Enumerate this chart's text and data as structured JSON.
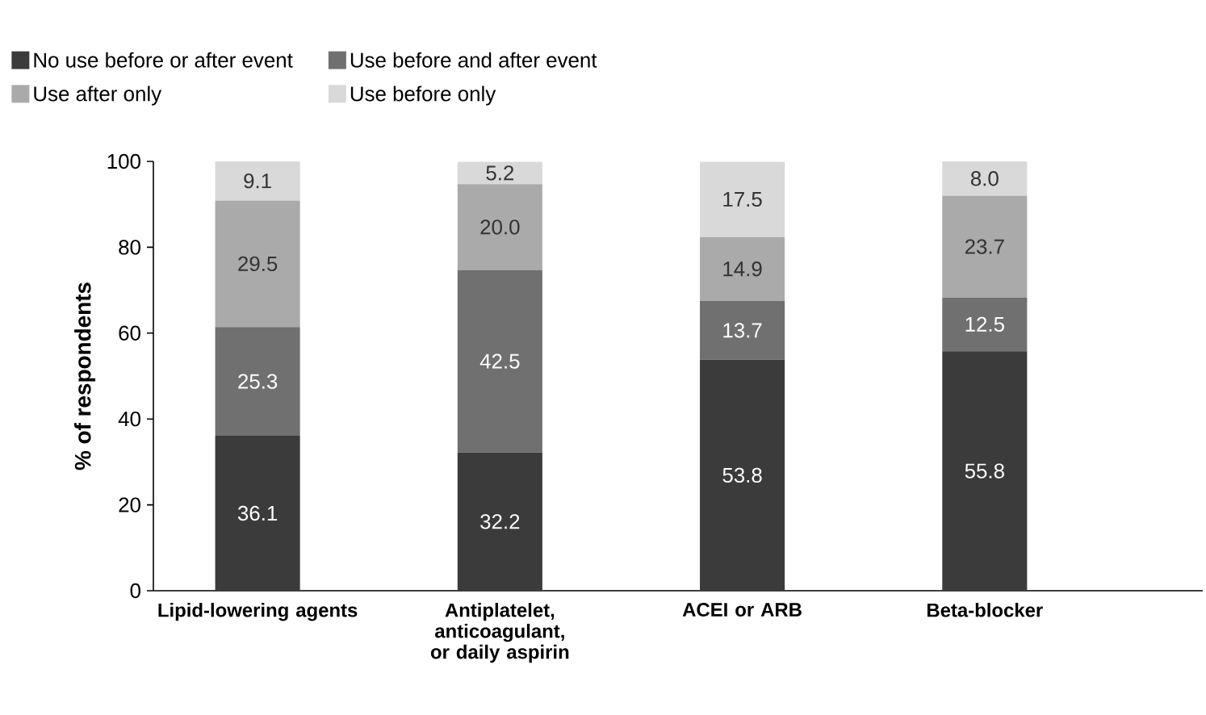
{
  "chart_data": {
    "type": "bar",
    "stacked": true,
    "ylabel": "% of respondents",
    "categories": [
      "Lipid-lowering agents",
      "Antiplatelet, anticoagulant, or daily aspirin",
      "ACEI or ARB",
      "Beta-blocker"
    ],
    "series": [
      {
        "name": "No use before or after event",
        "color": "#3b3b3b",
        "values": [
          36.1,
          32.2,
          53.8,
          55.8
        ],
        "value_labels": [
          "36.1",
          "32.2",
          "53.8",
          "55.8"
        ]
      },
      {
        "name": "Use before and after event",
        "color": "#707070",
        "values": [
          25.3,
          42.5,
          13.7,
          12.5
        ],
        "value_labels": [
          "25.3",
          "42.5",
          "13.7",
          "12.5"
        ]
      },
      {
        "name": "Use after only",
        "color": "#aaaaaa",
        "values": [
          29.5,
          20.0,
          14.9,
          23.7
        ],
        "value_labels": [
          "29.5",
          "20.0",
          "14.9",
          "23.7"
        ]
      },
      {
        "name": "Use before only",
        "color": "#d9d9d9",
        "values": [
          9.1,
          5.2,
          17.5,
          8.0
        ],
        "value_labels": [
          "9.1",
          "5.2",
          "17.5",
          "8.0"
        ]
      }
    ],
    "ylim": [
      0,
      100
    ],
    "yticks": [
      0,
      20,
      40,
      60,
      80,
      100
    ],
    "legend": "top",
    "grid": false
  }
}
